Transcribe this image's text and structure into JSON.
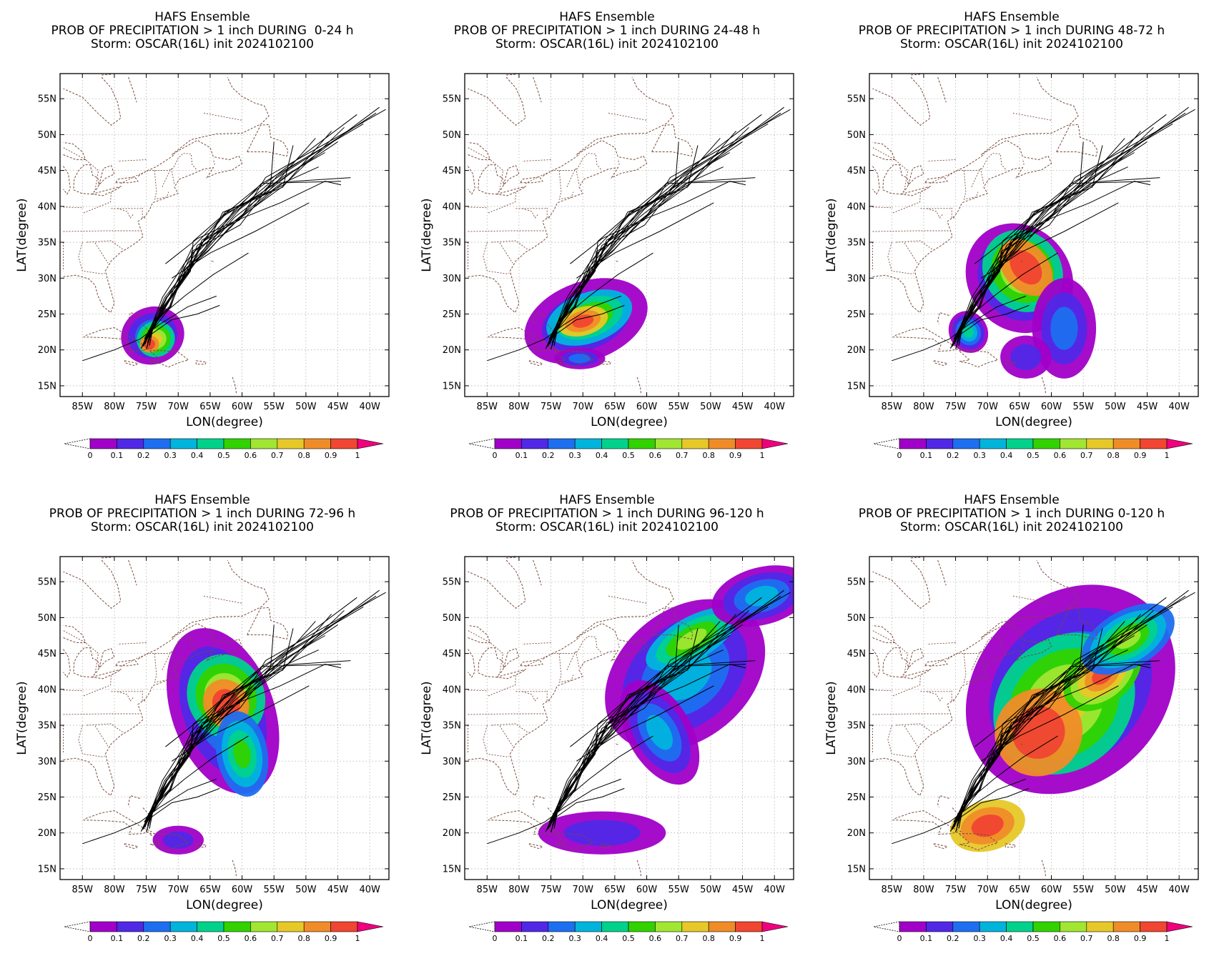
{
  "figure": {
    "title_line1": "HAFS Ensemble",
    "title_line3": "Storm: OSCAR(16L) init 2024102100",
    "xlabel": "LON(degree)",
    "ylabel": "LAT(degree)",
    "lon_ticks": [
      "85W",
      "80W",
      "75W",
      "70W",
      "65W",
      "60W",
      "55W",
      "50W",
      "45W",
      "40W"
    ],
    "lat_ticks": [
      "55N",
      "50N",
      "45N",
      "40N",
      "35N",
      "30N",
      "25N",
      "20N",
      "15N"
    ],
    "lon_range": [
      -88.5,
      -37.0
    ],
    "lat_range": [
      13.5,
      58.5
    ],
    "colorbar": {
      "labels": [
        "0",
        "0.1",
        "0.2",
        "0.3",
        "0.4",
        "0.5",
        "0.6",
        "0.7",
        "0.8",
        "0.9",
        "1"
      ],
      "colors": [
        "#a000c8",
        "#5028e6",
        "#1e6ef0",
        "#00b4dc",
        "#00d28c",
        "#32d200",
        "#a0e632",
        "#e6c828",
        "#f08c28",
        "#f04632",
        "#f0007d"
      ]
    },
    "map_line_color": "#7a4a3a",
    "track_color": "#000000"
  },
  "panels": [
    {
      "title_line2": "PROB OF PRECIPITATION > 1 inch DURING  0-24 h"
    },
    {
      "title_line2": "PROB OF PRECIPITATION > 1 inch DURING 24-48 h"
    },
    {
      "title_line2": "PROB OF PRECIPITATION > 1 inch DURING 48-72 h"
    },
    {
      "title_line2": "PROB OF PRECIPITATION > 1 inch DURING 72-96 h"
    },
    {
      "title_line2": "PROB OF PRECIPITATION > 1 inch DURING 96-120 h"
    },
    {
      "title_line2": "PROB OF PRECIPITATION > 1 inch DURING 0-120 h"
    }
  ]
}
